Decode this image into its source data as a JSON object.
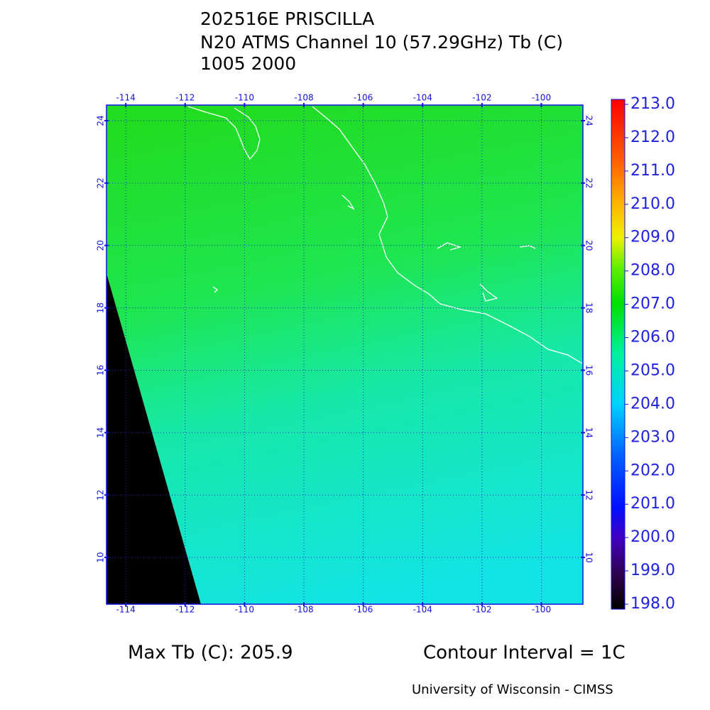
{
  "title": [
    "202516E PRISCILLA",
    "N20 ATMS Channel 10 (57.29GHz) Tb (C)",
    "1005 2000"
  ],
  "map": {
    "lon_range": [
      -114.65,
      -98.6
    ],
    "lat_range": [
      8.5,
      24.5
    ],
    "lon_ticks": [
      -114,
      -112,
      -110,
      -108,
      -106,
      -104,
      -102,
      -100
    ],
    "lat_ticks": [
      10,
      12,
      14,
      16,
      18,
      20,
      22,
      24
    ]
  },
  "colorbar": {
    "range": [
      198,
      213
    ],
    "ticks": [
      {
        "value": 198,
        "label": "198.0"
      },
      {
        "value": 199,
        "label": "199.0"
      },
      {
        "value": 200,
        "label": "200.0"
      },
      {
        "value": 201,
        "label": "201.0"
      },
      {
        "value": 202,
        "label": "202.0"
      },
      {
        "value": 203,
        "label": "203.0"
      },
      {
        "value": 204,
        "label": "204.0"
      },
      {
        "value": 205,
        "label": "205.0"
      },
      {
        "value": 206,
        "label": "206.0"
      },
      {
        "value": 207,
        "label": "207.0"
      },
      {
        "value": 208,
        "label": "208.0"
      },
      {
        "value": 209,
        "label": "209.0"
      },
      {
        "value": 210,
        "label": "210.0"
      },
      {
        "value": 211,
        "label": "211.0"
      },
      {
        "value": 212,
        "label": "212.0"
      },
      {
        "value": 213,
        "label": "213.0"
      }
    ]
  },
  "footer": {
    "max_tb": "Max Tb (C): 205.9",
    "contour": "Contour Interval = 1C",
    "credit": "University of Wisconsin - CIMSS"
  }
}
